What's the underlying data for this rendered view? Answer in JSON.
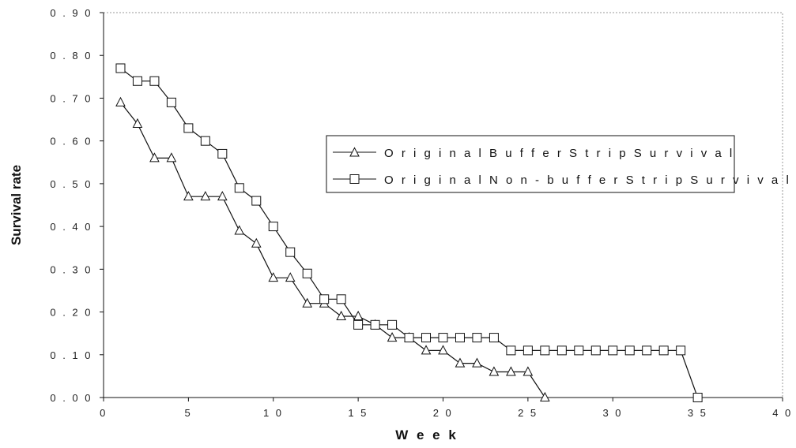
{
  "chart_data": {
    "type": "line",
    "title": "",
    "xlabel": "W e e k",
    "ylabel": "Survival rate",
    "xlim": [
      0,
      40
    ],
    "ylim": [
      0,
      0.9
    ],
    "x_ticks": [
      "0",
      "5",
      "1 0",
      "1 5",
      "2 0",
      "2 5",
      "3 0",
      "3 5",
      "4 0"
    ],
    "y_ticks": [
      "0 . 0 0",
      "0 . 1 0",
      "0 . 2 0",
      "0 . 3 0",
      "0 . 4 0",
      "0 . 5 0",
      "0 . 6 0",
      "0 . 7 0",
      "0 . 8 0",
      "0 . 9 0"
    ],
    "grid": false,
    "legend_position": "center-right",
    "series": [
      {
        "name": "O r i g i n a l  B u f f e r  S t r i p  S u r v i v a l",
        "marker": "triangle",
        "color": "#111111",
        "x": [
          1,
          2,
          3,
          4,
          5,
          6,
          7,
          8,
          9,
          10,
          11,
          12,
          13,
          14,
          15,
          16,
          17,
          18,
          19,
          20,
          21,
          22,
          23,
          24,
          25,
          26
        ],
        "y": [
          0.69,
          0.64,
          0.56,
          0.56,
          0.47,
          0.47,
          0.47,
          0.39,
          0.36,
          0.28,
          0.28,
          0.22,
          0.22,
          0.19,
          0.19,
          0.17,
          0.14,
          0.14,
          0.11,
          0.11,
          0.08,
          0.08,
          0.06,
          0.06,
          0.06,
          0.0
        ]
      },
      {
        "name": "O r i g i n a l  N o n - b u f f e r  S t r i p  S u r v i v a l",
        "marker": "square",
        "color": "#111111",
        "x": [
          1,
          2,
          3,
          4,
          5,
          6,
          7,
          8,
          9,
          10,
          11,
          12,
          13,
          14,
          15,
          16,
          17,
          18,
          19,
          20,
          21,
          22,
          23,
          24,
          25,
          26,
          27,
          28,
          29,
          30,
          31,
          32,
          33,
          34,
          35
        ],
        "y": [
          0.77,
          0.74,
          0.74,
          0.69,
          0.63,
          0.6,
          0.57,
          0.49,
          0.46,
          0.4,
          0.34,
          0.29,
          0.23,
          0.23,
          0.17,
          0.17,
          0.17,
          0.14,
          0.14,
          0.14,
          0.14,
          0.14,
          0.14,
          0.11,
          0.11,
          0.11,
          0.11,
          0.11,
          0.11,
          0.11,
          0.11,
          0.11,
          0.11,
          0.11,
          0.0
        ]
      }
    ]
  }
}
